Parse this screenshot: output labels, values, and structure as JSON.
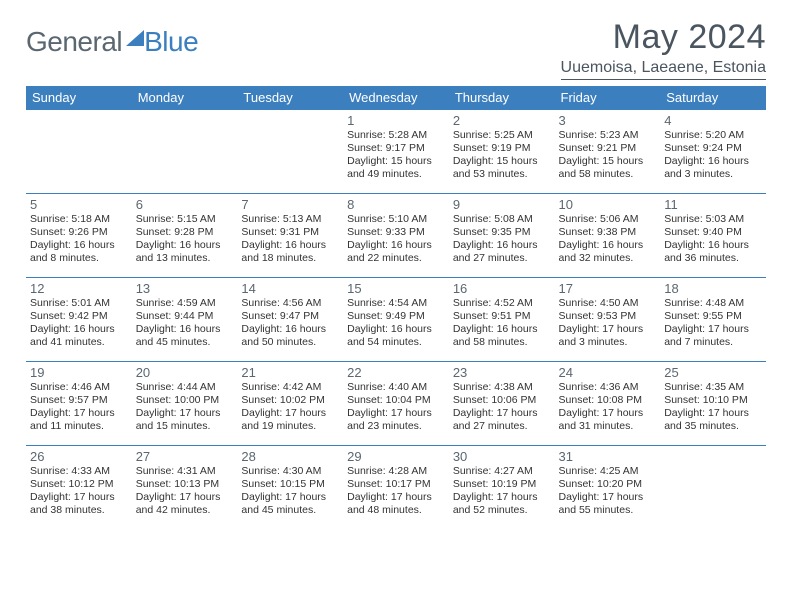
{
  "brand": {
    "part1": "General",
    "part2": "Blue"
  },
  "title": "May 2024",
  "location": "Uuemoisa, Laeaene, Estonia",
  "colors": {
    "header_bg": "#3c7fbf",
    "header_text": "#ffffff",
    "border": "#3c7fbf",
    "text": "#333333",
    "muted": "#5b6770",
    "page_bg": "#ffffff"
  },
  "typography": {
    "month_title_size": 34,
    "location_size": 16,
    "weekday_size": 13,
    "daynum_size": 13,
    "body_size": 10.5
  },
  "layout": {
    "weeks": 5,
    "start_weekday_index": 3
  },
  "weekdays": [
    "Sunday",
    "Monday",
    "Tuesday",
    "Wednesday",
    "Thursday",
    "Friday",
    "Saturday"
  ],
  "days": [
    {
      "n": 1,
      "sunrise": "5:28 AM",
      "sunset": "9:17 PM",
      "daylight": "15 hours and 49 minutes."
    },
    {
      "n": 2,
      "sunrise": "5:25 AM",
      "sunset": "9:19 PM",
      "daylight": "15 hours and 53 minutes."
    },
    {
      "n": 3,
      "sunrise": "5:23 AM",
      "sunset": "9:21 PM",
      "daylight": "15 hours and 58 minutes."
    },
    {
      "n": 4,
      "sunrise": "5:20 AM",
      "sunset": "9:24 PM",
      "daylight": "16 hours and 3 minutes."
    },
    {
      "n": 5,
      "sunrise": "5:18 AM",
      "sunset": "9:26 PM",
      "daylight": "16 hours and 8 minutes."
    },
    {
      "n": 6,
      "sunrise": "5:15 AM",
      "sunset": "9:28 PM",
      "daylight": "16 hours and 13 minutes."
    },
    {
      "n": 7,
      "sunrise": "5:13 AM",
      "sunset": "9:31 PM",
      "daylight": "16 hours and 18 minutes."
    },
    {
      "n": 8,
      "sunrise": "5:10 AM",
      "sunset": "9:33 PM",
      "daylight": "16 hours and 22 minutes."
    },
    {
      "n": 9,
      "sunrise": "5:08 AM",
      "sunset": "9:35 PM",
      "daylight": "16 hours and 27 minutes."
    },
    {
      "n": 10,
      "sunrise": "5:06 AM",
      "sunset": "9:38 PM",
      "daylight": "16 hours and 32 minutes."
    },
    {
      "n": 11,
      "sunrise": "5:03 AM",
      "sunset": "9:40 PM",
      "daylight": "16 hours and 36 minutes."
    },
    {
      "n": 12,
      "sunrise": "5:01 AM",
      "sunset": "9:42 PM",
      "daylight": "16 hours and 41 minutes."
    },
    {
      "n": 13,
      "sunrise": "4:59 AM",
      "sunset": "9:44 PM",
      "daylight": "16 hours and 45 minutes."
    },
    {
      "n": 14,
      "sunrise": "4:56 AM",
      "sunset": "9:47 PM",
      "daylight": "16 hours and 50 minutes."
    },
    {
      "n": 15,
      "sunrise": "4:54 AM",
      "sunset": "9:49 PM",
      "daylight": "16 hours and 54 minutes."
    },
    {
      "n": 16,
      "sunrise": "4:52 AM",
      "sunset": "9:51 PM",
      "daylight": "16 hours and 58 minutes."
    },
    {
      "n": 17,
      "sunrise": "4:50 AM",
      "sunset": "9:53 PM",
      "daylight": "17 hours and 3 minutes."
    },
    {
      "n": 18,
      "sunrise": "4:48 AM",
      "sunset": "9:55 PM",
      "daylight": "17 hours and 7 minutes."
    },
    {
      "n": 19,
      "sunrise": "4:46 AM",
      "sunset": "9:57 PM",
      "daylight": "17 hours and 11 minutes."
    },
    {
      "n": 20,
      "sunrise": "4:44 AM",
      "sunset": "10:00 PM",
      "daylight": "17 hours and 15 minutes."
    },
    {
      "n": 21,
      "sunrise": "4:42 AM",
      "sunset": "10:02 PM",
      "daylight": "17 hours and 19 minutes."
    },
    {
      "n": 22,
      "sunrise": "4:40 AM",
      "sunset": "10:04 PM",
      "daylight": "17 hours and 23 minutes."
    },
    {
      "n": 23,
      "sunrise": "4:38 AM",
      "sunset": "10:06 PM",
      "daylight": "17 hours and 27 minutes."
    },
    {
      "n": 24,
      "sunrise": "4:36 AM",
      "sunset": "10:08 PM",
      "daylight": "17 hours and 31 minutes."
    },
    {
      "n": 25,
      "sunrise": "4:35 AM",
      "sunset": "10:10 PM",
      "daylight": "17 hours and 35 minutes."
    },
    {
      "n": 26,
      "sunrise": "4:33 AM",
      "sunset": "10:12 PM",
      "daylight": "17 hours and 38 minutes."
    },
    {
      "n": 27,
      "sunrise": "4:31 AM",
      "sunset": "10:13 PM",
      "daylight": "17 hours and 42 minutes."
    },
    {
      "n": 28,
      "sunrise": "4:30 AM",
      "sunset": "10:15 PM",
      "daylight": "17 hours and 45 minutes."
    },
    {
      "n": 29,
      "sunrise": "4:28 AM",
      "sunset": "10:17 PM",
      "daylight": "17 hours and 48 minutes."
    },
    {
      "n": 30,
      "sunrise": "4:27 AM",
      "sunset": "10:19 PM",
      "daylight": "17 hours and 52 minutes."
    },
    {
      "n": 31,
      "sunrise": "4:25 AM",
      "sunset": "10:20 PM",
      "daylight": "17 hours and 55 minutes."
    }
  ],
  "labels": {
    "sunrise": "Sunrise: ",
    "sunset": "Sunset: ",
    "daylight": "Daylight: "
  }
}
